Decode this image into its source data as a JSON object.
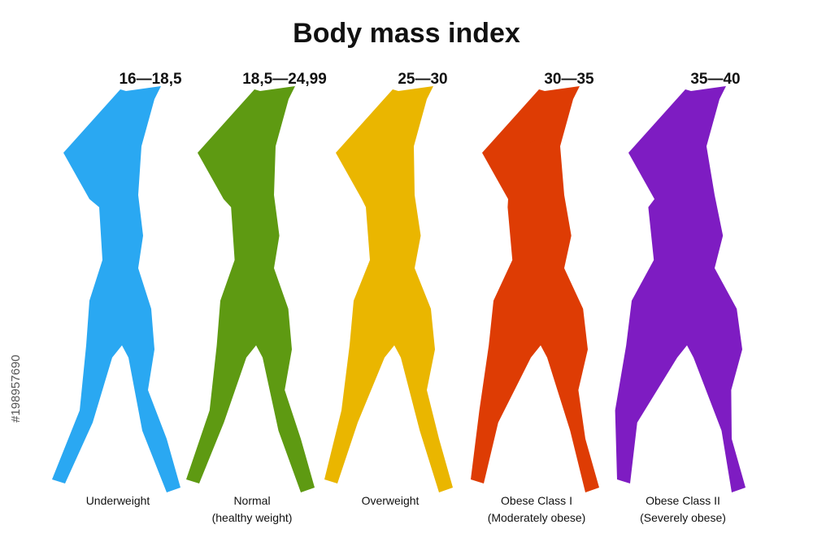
{
  "header": {
    "title": "Body mass index"
  },
  "side_id": "#198957690",
  "figures": [
    {
      "range": "16—18,5",
      "label": [
        "Underweight"
      ],
      "color": "#2aa8f2"
    },
    {
      "range": "18,5—24,99",
      "label": [
        "Normal",
        "(healthy weight)"
      ],
      "color": "#5e9a12"
    },
    {
      "range": "25—30",
      "label": [
        "Overweight"
      ],
      "color": "#eab600"
    },
    {
      "range": "30—35",
      "label": [
        "Obese Class I",
        "(Moderately obese)"
      ],
      "color": "#de3c04"
    },
    {
      "range": "35—40",
      "label": [
        "Obese Class II",
        "(Severely obese)"
      ],
      "color": "#7e1cc2"
    }
  ]
}
